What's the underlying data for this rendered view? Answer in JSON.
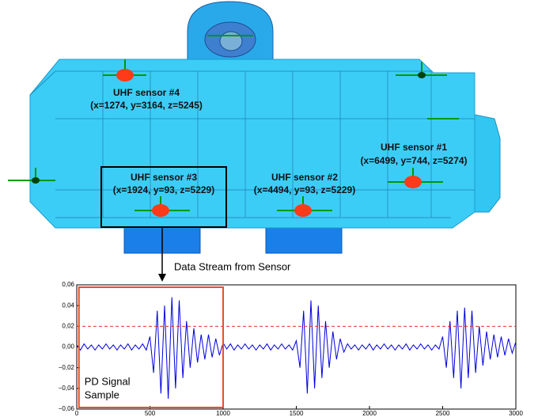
{
  "diagram": {
    "sensors": [
      {
        "name": "UHF sensor #4",
        "coords": "(x=1274, y=3164, z=5245)"
      },
      {
        "name": "UHF sensor #3",
        "coords": "(x=1924, y=93, z=5229)"
      },
      {
        "name": "UHF sensor #2",
        "coords": "(x=4494, y=93, z=5229)"
      },
      {
        "name": "UHF sensor #1",
        "coords": "(x=6499, y=744, z=5274)"
      }
    ],
    "annotation": "Data Stream from Sensor"
  },
  "chart_data": {
    "type": "line",
    "color": "#0000dd",
    "xlim": [
      0,
      3000
    ],
    "xticks": [
      0,
      500,
      1000,
      1500,
      2000,
      2500,
      3000
    ],
    "ylim": [
      -0.06,
      0.06
    ],
    "yticks": [
      {
        "value": -0.06,
        "label": "−0,06"
      },
      {
        "value": -0.04,
        "label": "−0,04"
      },
      {
        "value": -0.02,
        "label": "−0,02"
      },
      {
        "value": 0,
        "label": "0,00"
      },
      {
        "value": 0.02,
        "label": "0,02"
      },
      {
        "value": 0.04,
        "label": "0,04"
      },
      {
        "value": 0.06,
        "label": "0,06"
      }
    ],
    "threshold": {
      "value": 0.02,
      "color": "#e8302a"
    },
    "annotation": {
      "lines": [
        "PD Signal",
        "Sample"
      ],
      "x_range": [
        15,
        1000
      ],
      "color": "#e8502a"
    },
    "x": [
      0,
      25,
      50,
      75,
      100,
      125,
      150,
      175,
      200,
      225,
      250,
      275,
      300,
      325,
      350,
      375,
      400,
      425,
      450,
      475,
      500,
      525,
      550,
      575,
      600,
      625,
      650,
      675,
      700,
      725,
      750,
      775,
      800,
      825,
      850,
      875,
      900,
      925,
      950,
      975,
      1000,
      1025,
      1050,
      1075,
      1100,
      1125,
      1150,
      1175,
      1200,
      1225,
      1250,
      1275,
      1300,
      1325,
      1350,
      1375,
      1400,
      1425,
      1450,
      1475,
      1500,
      1525,
      1550,
      1575,
      1600,
      1625,
      1650,
      1675,
      1700,
      1725,
      1750,
      1775,
      1800,
      1825,
      1850,
      1875,
      1900,
      1925,
      1950,
      1975,
      2000,
      2025,
      2050,
      2075,
      2100,
      2125,
      2150,
      2175,
      2200,
      2225,
      2250,
      2275,
      2300,
      2325,
      2350,
      2375,
      2400,
      2425,
      2450,
      2475,
      2500,
      2525,
      2550,
      2575,
      2600,
      2625,
      2650,
      2675,
      2700,
      2725,
      2750,
      2775,
      2800,
      2825,
      2850,
      2875,
      2900,
      2925,
      2950,
      2975,
      3000
    ],
    "values": [
      0.002,
      -0.003,
      0.003,
      -0.002,
      0.002,
      -0.003,
      0.002,
      -0.002,
      0.003,
      -0.002,
      0.002,
      -0.003,
      0.002,
      -0.002,
      0.003,
      -0.003,
      0.002,
      -0.002,
      0.003,
      -0.003,
      0.01,
      -0.025,
      0.035,
      -0.045,
      0.04,
      -0.05,
      0.048,
      -0.04,
      0.045,
      -0.03,
      0.025,
      -0.02,
      0.018,
      -0.015,
      0.012,
      -0.012,
      0.012,
      -0.01,
      0.008,
      -0.008,
      0.004,
      -0.002,
      0.003,
      -0.003,
      0.002,
      -0.002,
      0.003,
      -0.002,
      0.002,
      -0.003,
      0.002,
      -0.002,
      0.003,
      -0.003,
      0.002,
      -0.002,
      0.003,
      -0.002,
      0.002,
      -0.003,
      0.006,
      -0.02,
      0.035,
      -0.045,
      0.045,
      -0.04,
      0.04,
      -0.03,
      0.025,
      -0.02,
      0.015,
      -0.012,
      0.008,
      -0.005,
      0.003,
      -0.002,
      0.002,
      -0.003,
      0.002,
      -0.002,
      0.003,
      -0.003,
      0.002,
      -0.002,
      0.003,
      -0.002,
      0.002,
      -0.003,
      0.002,
      -0.002,
      0.003,
      -0.003,
      0.002,
      -0.002,
      0.003,
      -0.002,
      0.002,
      -0.003,
      0.002,
      -0.002,
      0.01,
      -0.02,
      0.025,
      -0.03,
      0.035,
      -0.04,
      0.038,
      -0.03,
      0.035,
      -0.025,
      0.02,
      -0.018,
      0.015,
      -0.012,
      0.012,
      -0.01,
      0.01,
      -0.008,
      0.008,
      -0.006,
      0.005
    ]
  }
}
